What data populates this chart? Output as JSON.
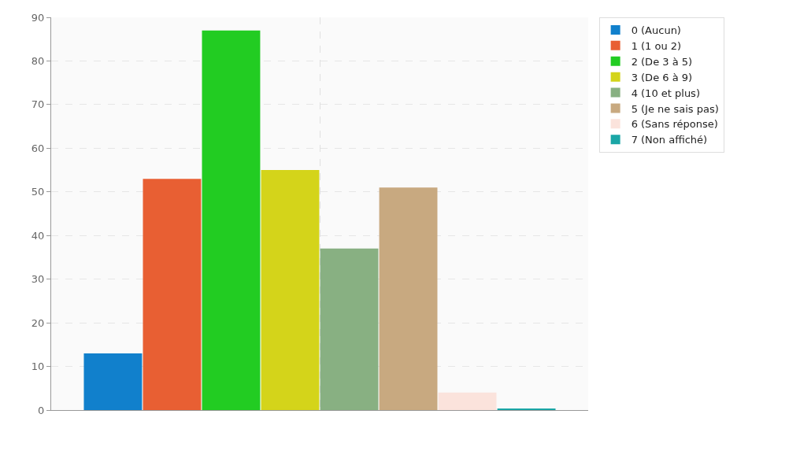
{
  "chart_data": {
    "type": "bar",
    "categories": [
      null
    ],
    "series": [
      {
        "name": "0 (Aucun)",
        "color": "#1180cc",
        "values": [
          13
        ]
      },
      {
        "name": "1 (1 ou 2)",
        "color": "#e85f33",
        "values": [
          53
        ]
      },
      {
        "name": "2 (De 3 à 5)",
        "color": "#22cc22",
        "values": [
          87
        ]
      },
      {
        "name": "3 (De 6 à 9)",
        "color": "#d4d41a",
        "values": [
          55
        ]
      },
      {
        "name": "4 (10 et plus)",
        "color": "#88b082",
        "values": [
          37
        ]
      },
      {
        "name": "5 (Je ne sais pas)",
        "color": "#c8a980",
        "values": [
          51
        ]
      },
      {
        "name": "6 (Sans réponse)",
        "color": "#fbe3dc",
        "values": [
          4
        ]
      },
      {
        "name": "7 (Non affiché)",
        "color": "#1aa6a6",
        "values": [
          0.3
        ]
      }
    ],
    "ylim": [
      0,
      90
    ],
    "yticks": [
      0,
      10,
      20,
      30,
      40,
      50,
      60,
      70,
      80,
      90
    ],
    "grid": true,
    "legend": "top right"
  }
}
